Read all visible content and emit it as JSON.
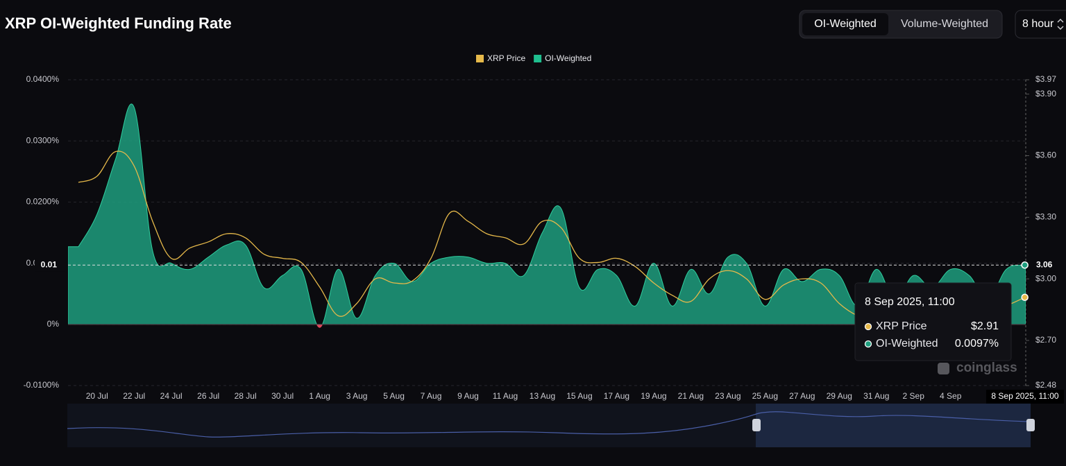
{
  "chart_data": {
    "type": "area",
    "title": "XRP OI-Weighted Funding Rate",
    "x": [
      null,
      "20 Jul",
      null,
      "22 Jul",
      null,
      "24 Jul",
      null,
      "26 Jul",
      null,
      "28 Jul",
      null,
      "30 Jul",
      null,
      "1 Aug",
      null,
      "3 Aug",
      null,
      "5 Aug",
      null,
      "7 Aug",
      null,
      "9 Aug",
      null,
      "11 Aug",
      null,
      "13 Aug",
      null,
      "15 Aug",
      null,
      "17 Aug",
      null,
      "19 Aug",
      null,
      "21 Aug",
      null,
      "23 Aug",
      null,
      "25 Aug",
      null,
      "27 Aug",
      null,
      "29 Aug",
      null,
      "31 Aug",
      null,
      "2 Sep",
      null,
      "4 Sep",
      null,
      null,
      null,
      "8 Sep 2025, 11:00"
    ],
    "series": [
      {
        "name": "XRP Price",
        "color": "#e6b94a",
        "type": "line",
        "axis": "y2",
        "values": [
          3.47,
          3.5,
          3.62,
          3.55,
          3.28,
          3.1,
          3.15,
          3.18,
          3.22,
          3.2,
          3.12,
          3.1,
          3.08,
          2.96,
          2.82,
          2.88,
          3.0,
          2.98,
          2.99,
          3.1,
          3.32,
          3.28,
          3.22,
          3.2,
          3.17,
          3.28,
          3.25,
          3.1,
          3.08,
          3.1,
          3.06,
          2.98,
          2.92,
          2.89,
          3.0,
          3.04,
          3.0,
          2.9,
          2.97,
          3.0,
          2.98,
          2.88,
          2.82,
          2.8,
          2.79,
          2.82,
          2.85,
          2.84,
          2.83,
          2.85,
          2.87,
          2.91
        ]
      },
      {
        "name": "OI-Weighted",
        "color": "#1e9e7e",
        "type": "area",
        "values": [
          0.0127,
          0.018,
          0.027,
          0.0355,
          0.012,
          0.01,
          0.009,
          0.011,
          0.013,
          0.013,
          0.006,
          0.008,
          0.009,
          -0.0005,
          0.009,
          0.001,
          0.008,
          0.01,
          0.007,
          0.01,
          0.011,
          0.011,
          0.01,
          0.01,
          0.008,
          0.015,
          0.019,
          0.006,
          0.009,
          0.008,
          0.003,
          0.01,
          0.003,
          0.009,
          0.005,
          0.011,
          0.01,
          0.003,
          0.009,
          0.007,
          0.009,
          0.008,
          0.003,
          0.009,
          0.004,
          0.008,
          0.006,
          0.009,
          0.008,
          0.004,
          0.009,
          0.0097
        ]
      }
    ],
    "ylim": [
      -0.01,
      0.04
    ],
    "yticks": [
      {
        "value": -0.01,
        "label": "-0.0100%"
      },
      {
        "value": 0,
        "label": "0%"
      },
      {
        "value": 0.01,
        "label": "0.0100%"
      },
      {
        "value": 0.02,
        "label": "0.0200%"
      },
      {
        "value": 0.03,
        "label": "0.0300%"
      },
      {
        "value": 0.04,
        "label": "0.0400%"
      }
    ],
    "y2lim": [
      2.48,
      3.97
    ],
    "y2ticks": [
      {
        "value": 2.48,
        "label": "$2.48"
      },
      {
        "value": 2.7,
        "label": "$2.70"
      },
      {
        "value": 3.0,
        "label": "$3.00"
      },
      {
        "value": 3.3,
        "label": "$3.30"
      },
      {
        "value": 3.6,
        "label": "$3.60"
      },
      {
        "value": 3.9,
        "label": "$3.90"
      },
      {
        "value": 3.97,
        "label": "$3.97"
      }
    ],
    "grid": true,
    "legend": "top",
    "crosshair": {
      "y_label": "0.01",
      "y2_label": "3.06"
    },
    "tooltip": {
      "values": [
        "$2.91",
        "0.0097%"
      ]
    },
    "watermark": "coinglass"
  },
  "controls": {
    "tabs": [
      "OI-Weighted",
      "Volume-Weighted"
    ],
    "interval": "8 hour"
  }
}
